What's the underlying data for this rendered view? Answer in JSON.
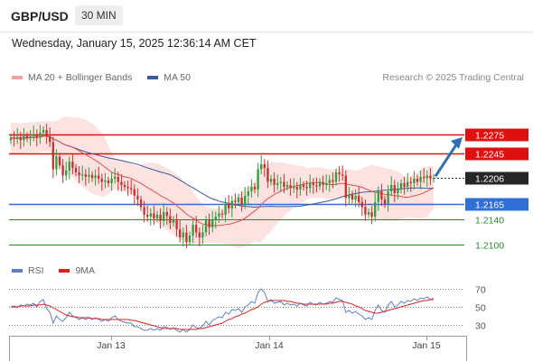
{
  "header": {
    "symbol": "GBP/USD",
    "timeframe": "30 MIN",
    "datetime": "Wednesday, January 15, 2025 12:36:14 AM CET",
    "credit": "Research © 2025 Trading Central"
  },
  "legend_main": [
    {
      "label": "MA 20 + Bollinger Bands",
      "color": "#f4a0a0"
    },
    {
      "label": "MA 50",
      "color": "#3a5a9a"
    }
  ],
  "legend_rsi": [
    {
      "label": "RSI",
      "color": "#5c7fc4"
    },
    {
      "label": "9MA",
      "color": "#e02020"
    }
  ],
  "chart_data": [
    {
      "type": "candlestick",
      "title": "GBP/USD 30 MIN",
      "ylim": [
        1.2085,
        1.2305
      ],
      "x_ticks": [
        "Jan 13",
        "Jan 14",
        "Jan 15"
      ],
      "last_price": 1.2206,
      "levels": [
        {
          "value": 1.2275,
          "label": "1.2275",
          "style": "resistance",
          "color": "#e01010"
        },
        {
          "value": 1.2245,
          "label": "1.2245",
          "style": "resistance",
          "color": "#e01010"
        },
        {
          "value": 1.2165,
          "label": "1.2165",
          "style": "pivot",
          "color": "#2f6fd6"
        },
        {
          "value": 1.214,
          "label": "1.2140",
          "style": "support",
          "color": "#2a8a2a"
        },
        {
          "value": 1.21,
          "label": "1.2100",
          "style": "support",
          "color": "#2a8a2a"
        }
      ],
      "close": [
        1.227,
        1.2268,
        1.2271,
        1.2266,
        1.2273,
        1.2269,
        1.2272,
        1.2275,
        1.227,
        1.2278,
        1.2282,
        1.2272,
        1.2263,
        1.222,
        1.224,
        1.2226,
        1.221,
        1.2218,
        1.2232,
        1.2222,
        1.2215,
        1.221,
        1.2212,
        1.2208,
        1.2211,
        1.2206,
        1.221,
        1.2205,
        1.22,
        1.2202,
        1.2198,
        1.2205,
        1.2208,
        1.22,
        1.2195,
        1.2192,
        1.219,
        1.2188,
        1.2178,
        1.2172,
        1.216,
        1.2148,
        1.2145,
        1.215,
        1.2142,
        1.2148,
        1.2138,
        1.2152,
        1.2146,
        1.2135,
        1.214,
        1.2125,
        1.2112,
        1.212,
        1.2105,
        1.2115,
        1.2132,
        1.212,
        1.2112,
        1.212,
        1.214,
        1.2128,
        1.214,
        1.2145,
        1.215,
        1.2148,
        1.2165,
        1.2158,
        1.217,
        1.2168,
        1.2175,
        1.2165,
        1.2178,
        1.2185,
        1.2192,
        1.2188,
        1.222,
        1.2228,
        1.2222,
        1.22,
        1.2205,
        1.2195,
        1.2198,
        1.22,
        1.2192,
        1.2195,
        1.219,
        1.2192,
        1.2188,
        1.2195,
        1.2192,
        1.219,
        1.2198,
        1.2195,
        1.2193,
        1.22,
        1.2195,
        1.2198,
        1.2203,
        1.22,
        1.2215,
        1.2212,
        1.221,
        1.2175,
        1.218,
        1.2172,
        1.2178,
        1.2168,
        1.216,
        1.2148,
        1.2152,
        1.2145,
        1.2168,
        1.2185,
        1.2172,
        1.2165,
        1.2185,
        1.2195,
        1.2182,
        1.2188,
        1.2198,
        1.2192,
        1.22,
        1.2198,
        1.2205,
        1.22,
        1.2208,
        1.2206,
        1.221,
        1.2205,
        1.2206
      ],
      "series_overlays": [
        {
          "name": "MA 20 + Bollinger Bands",
          "color": "#e05050"
        },
        {
          "name": "MA 50",
          "color": "#3a5a9a"
        }
      ]
    },
    {
      "type": "line",
      "ylim": [
        20,
        78
      ],
      "y_ticks": [
        70,
        50,
        30
      ],
      "series": [
        {
          "name": "RSI",
          "color": "#5c7fc4",
          "values": [
            50,
            51,
            49,
            52,
            51,
            53,
            52,
            54,
            50,
            56,
            58,
            48,
            44,
            32,
            40,
            36,
            34,
            38,
            44,
            40,
            38,
            36,
            38,
            36,
            38,
            36,
            38,
            36,
            34,
            36,
            34,
            38,
            40,
            36,
            34,
            33,
            32,
            32,
            28,
            28,
            26,
            24,
            24,
            26,
            24,
            26,
            24,
            28,
            27,
            25,
            27,
            24,
            22,
            25,
            22,
            25,
            30,
            27,
            26,
            29,
            34,
            30,
            35,
            37,
            39,
            38,
            44,
            42,
            47,
            46,
            48,
            44,
            50,
            52,
            56,
            54,
            66,
            70,
            66,
            56,
            58,
            54,
            55,
            56,
            52,
            54,
            52,
            53,
            51,
            54,
            52,
            51,
            55,
            53,
            52,
            55,
            53,
            54,
            56,
            55,
            60,
            58,
            57,
            44,
            46,
            43,
            45,
            42,
            40,
            36,
            38,
            36,
            46,
            52,
            46,
            44,
            52,
            56,
            50,
            52,
            56,
            54,
            57,
            56,
            59,
            57,
            60,
            59,
            61,
            58,
            60
          ]
        },
        {
          "name": "9MA",
          "color": "#e02020",
          "values": [
            50,
            50,
            50,
            51,
            51,
            51,
            51,
            52,
            52,
            52,
            53,
            52,
            51,
            49,
            47,
            45,
            43,
            41,
            40,
            39,
            39,
            38,
            38,
            38,
            38,
            37,
            37,
            37,
            36,
            36,
            36,
            36,
            36,
            36,
            36,
            36,
            36,
            35,
            35,
            34,
            33,
            32,
            31,
            30,
            29,
            28,
            27,
            26,
            26,
            26,
            26,
            26,
            25,
            25,
            25,
            25,
            25,
            25,
            26,
            26,
            27,
            28,
            29,
            30,
            31,
            32,
            34,
            36,
            37,
            39,
            40,
            42,
            43,
            45,
            47,
            48,
            50,
            53,
            55,
            56,
            57,
            57,
            57,
            57,
            57,
            56,
            56,
            55,
            54,
            54,
            53,
            53,
            53,
            53,
            53,
            53,
            53,
            53,
            54,
            54,
            55,
            56,
            56,
            55,
            54,
            53,
            51,
            50,
            48,
            46,
            45,
            44,
            43,
            43,
            44,
            45,
            46,
            47,
            48,
            49,
            50,
            51,
            52,
            53,
            54,
            55,
            56,
            57,
            57,
            58,
            58
          ]
        }
      ]
    }
  ]
}
